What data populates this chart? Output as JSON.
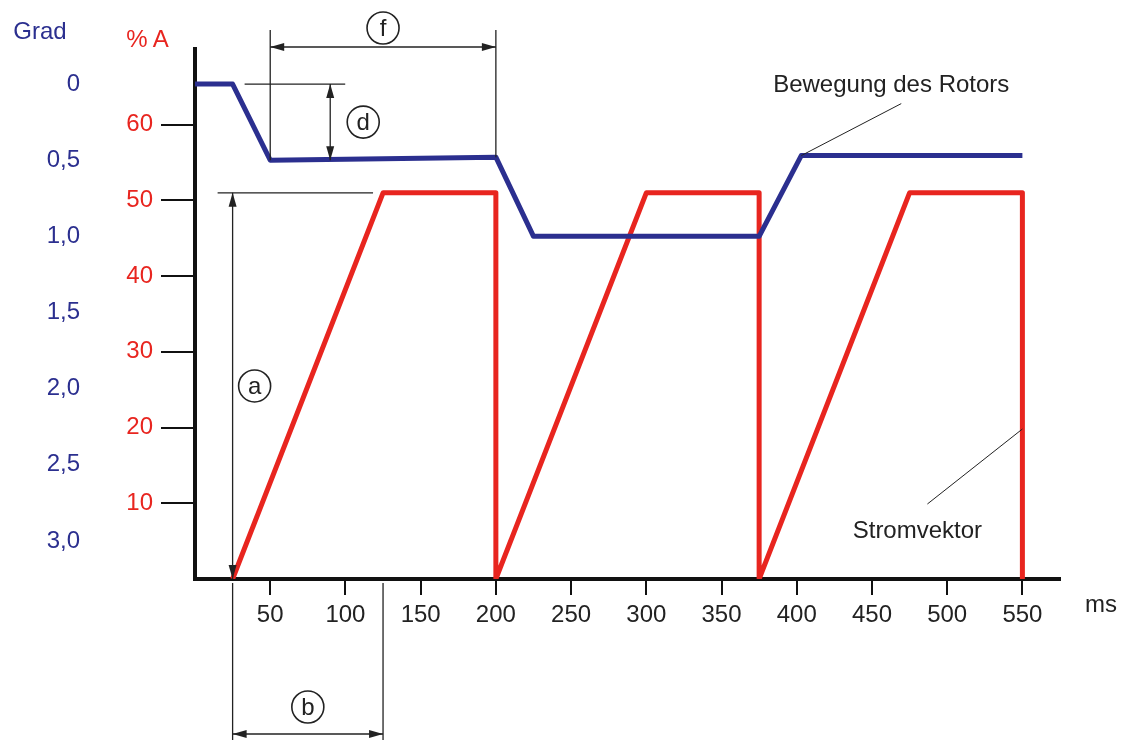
{
  "chart_data": {
    "type": "line",
    "xlabel": "ms",
    "ylabel": "% A",
    "y2label": "Grad",
    "xlim": [
      0,
      575
    ],
    "xticks": [
      50,
      100,
      150,
      200,
      250,
      300,
      350,
      400,
      450,
      500,
      550
    ],
    "ylim": [
      0,
      70
    ],
    "yticks": [
      10,
      20,
      30,
      40,
      50,
      60
    ],
    "y2lim": [
      3.25,
      -0.23
    ],
    "y2ticks": [
      0,
      {
        "value": 0.5,
        "label": "0,5"
      },
      {
        "value": 1,
        "label": "1,0"
      },
      {
        "value": 1.5,
        "label": "1,5"
      },
      {
        "value": 2,
        "label": "2,0"
      },
      {
        "value": 2.5,
        "label": "2,5"
      },
      {
        "value": 3,
        "label": "3,0"
      }
    ],
    "grid": false,
    "legend": false,
    "marker": "none",
    "line_style": "solid",
    "annotations": [
      "a",
      "b",
      "d",
      "f"
    ],
    "series": [
      {
        "name": "Bewegung des Rotors",
        "color": "#2b2f8f",
        "axis": "y2",
        "x": [
          0,
          25,
          50,
          200,
          225,
          375,
          403,
          550
        ],
        "values": [
          0,
          0,
          0.5,
          0.48,
          1.0,
          1.0,
          0.47,
          0.47
        ]
      },
      {
        "name": "Stromvektor",
        "color": "#e8251f",
        "x": [
          25,
          125,
          200,
          200,
          300,
          375,
          375,
          475,
          550,
          550
        ],
        "values": [
          0,
          51,
          51,
          0,
          51,
          51,
          0,
          51,
          51,
          0
        ]
      }
    ]
  }
}
